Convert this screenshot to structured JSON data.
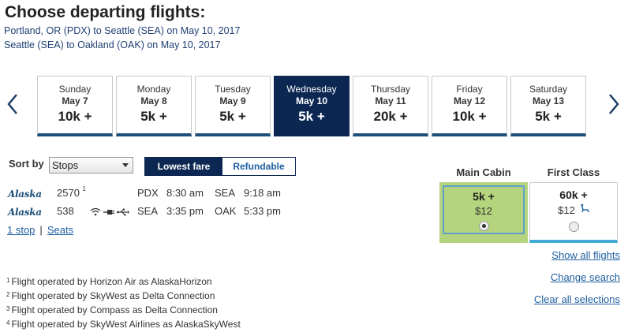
{
  "page": {
    "title": "Choose departing flights:",
    "route_lines": [
      "Portland, OR (PDX) to Seattle (SEA) on May 10, 2017",
      "Seattle (SEA) to Oakland (OAK) on May 10, 2017"
    ]
  },
  "days": [
    {
      "name": "Sunday",
      "date": "May 7",
      "price": "10k +"
    },
    {
      "name": "Monday",
      "date": "May 8",
      "price": "5k +"
    },
    {
      "name": "Tuesday",
      "date": "May 9",
      "price": "5k +"
    },
    {
      "name": "Wednesday",
      "date": "May 10",
      "price": "5k +",
      "selected": true
    },
    {
      "name": "Thursday",
      "date": "May 11",
      "price": "20k +"
    },
    {
      "name": "Friday",
      "date": "May 12",
      "price": "10k +"
    },
    {
      "name": "Saturday",
      "date": "May 13",
      "price": "5k +"
    }
  ],
  "sort": {
    "label": "Sort by",
    "selected": "Stops",
    "toggle": [
      "Lowest fare",
      "Refundable"
    ]
  },
  "cabins": {
    "main": "Main Cabin",
    "first": "First Class"
  },
  "flight": {
    "carrier_logo": "Alaska",
    "segments": [
      {
        "number": "2570",
        "note": "1",
        "origin": "PDX",
        "depart": "8:30 am",
        "dest": "SEA",
        "arrive": "9:18 am"
      },
      {
        "number": "538",
        "note": "",
        "origin": "SEA",
        "depart": "3:35 pm",
        "dest": "OAK",
        "arrive": "5:33 pm"
      }
    ],
    "stops_link": "1 stop",
    "seats_link": "Seats",
    "separator": "|",
    "main_fare": {
      "price": "5k +",
      "fee": "$12"
    },
    "first_fare": {
      "price": "60k +",
      "fee": "$12"
    }
  },
  "side_links": [
    "Show all flights",
    "Change search",
    "Clear all selections"
  ],
  "footnotes": [
    {
      "num": "1",
      "text": "Flight operated by Horizon Air as AlaskaHorizon"
    },
    {
      "num": "2",
      "text": "Flight operated by SkyWest as Delta Connection"
    },
    {
      "num": "3",
      "text": "Flight operated by Compass as Delta Connection"
    },
    {
      "num": "4",
      "text": "Flight operated by SkyWest Airlines as AlaskaSkyWest"
    }
  ],
  "colors": {
    "selected_day": "#0b2752",
    "main_cabin_bg": "#b4d47d",
    "link": "#1f5fa0"
  }
}
